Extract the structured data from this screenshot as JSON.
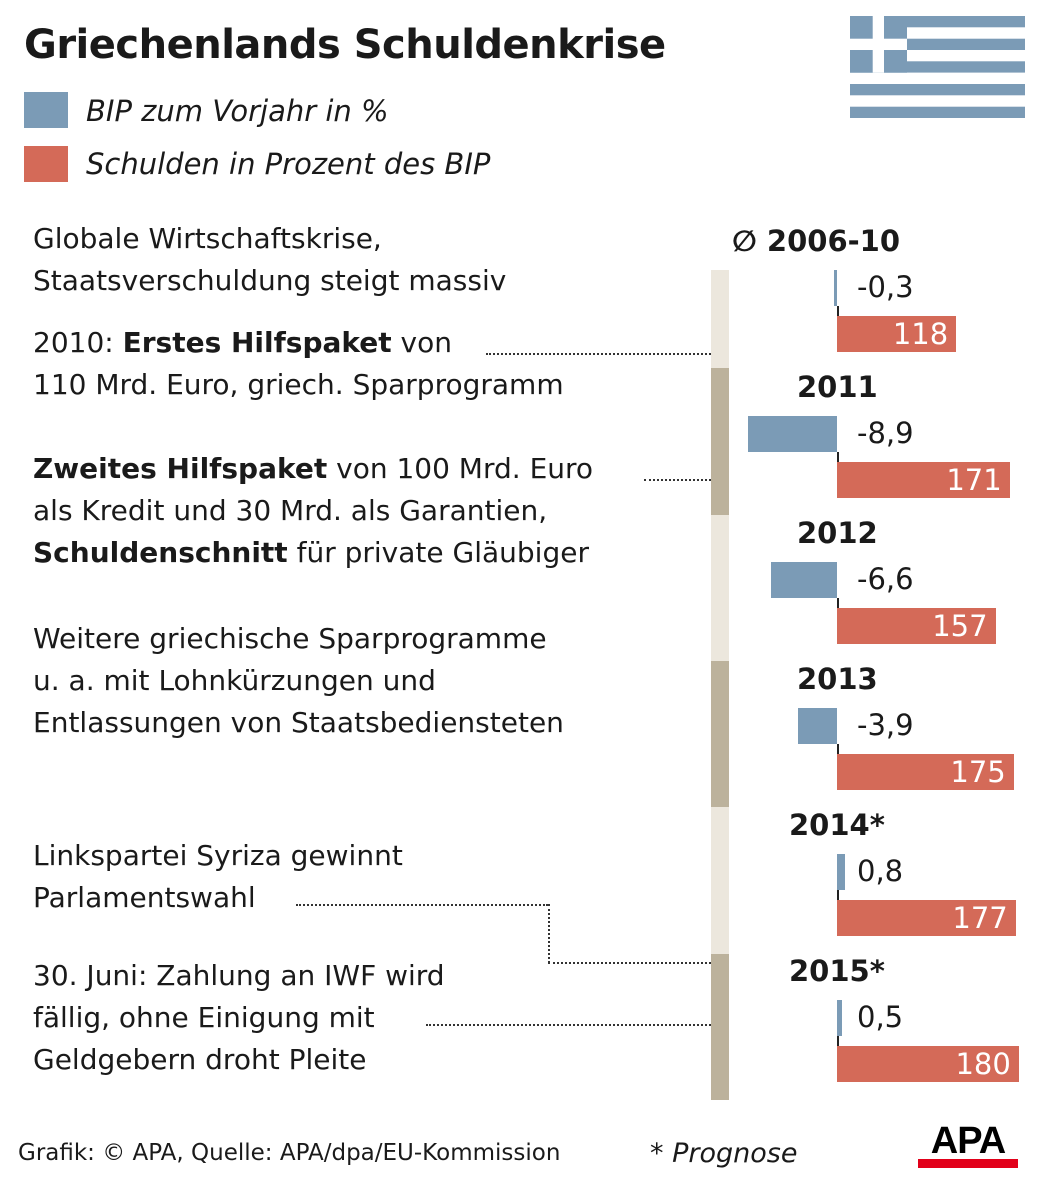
{
  "title": "Griechenlands Schuldenkrise",
  "colors": {
    "gdp": "#7b9bb6",
    "debt": "#d46a58",
    "seg_light": "#ece7dd",
    "seg_dark": "#bcb29c"
  },
  "legend": [
    {
      "label": "BIP zum Vorjahr in %",
      "color": "#7b9bb6"
    },
    {
      "label": "Schulden in Prozent des BIP",
      "color": "#d46a58"
    }
  ],
  "events": [
    {
      "parts": [
        {
          "t": "Globale Wirtschaftskrise,",
          "b": false
        }
      ],
      "line2": "Staatsverschuldung steigt massiv"
    },
    {
      "parts": [
        {
          "t": "2010: ",
          "b": false
        },
        {
          "t": "Erstes Hilfspaket",
          "b": true
        },
        {
          "t": " von",
          "b": false
        }
      ],
      "line2": "110 Mrd. Euro, griech. Sparprogramm"
    },
    {
      "parts": [
        {
          "t": "Zweites Hilfspaket",
          "b": true
        },
        {
          "t": " von 100 Mrd. Euro",
          "b": false
        }
      ],
      "line2": "als Kredit und 30 Mrd. als Garantien,",
      "line3parts": [
        {
          "t": "Schuldenschnitt",
          "b": true
        },
        {
          "t": " für private Gläubiger",
          "b": false
        }
      ]
    },
    {
      "parts": [
        {
          "t": "Weitere griechische Sparprogramme",
          "b": false
        }
      ],
      "line2": "u. a. mit Lohnkürzungen und",
      "line3": "Entlassungen von Staatsbediensteten"
    },
    {
      "parts": [
        {
          "t": "Linkspartei Syriza gewinnt",
          "b": false
        }
      ],
      "line2": "Parlamentswahl"
    },
    {
      "parts": [
        {
          "t": "30. Juni: Zahlung an IWF wird",
          "b": false
        }
      ],
      "line2": "fällig, ohne Einigung mit",
      "line3": "Geldgebern droht Pleite"
    }
  ],
  "chart_data": {
    "type": "bar",
    "title": "Griechenlands Schuldenkrise",
    "categories": [
      "∅ 2006-10",
      "2011",
      "2012",
      "2013",
      "2014*",
      "2015*"
    ],
    "series": [
      {
        "name": "BIP zum Vorjahr in %",
        "values": [
          -0.3,
          -8.9,
          -6.6,
          -3.9,
          0.8,
          0.5
        ],
        "labels": [
          "-0,3",
          "-8,9",
          "-6,6",
          "-3,9",
          "0,8",
          "0,5"
        ]
      },
      {
        "name": "Schulden in Prozent des BIP",
        "values": [
          118,
          171,
          157,
          175,
          177,
          180
        ],
        "labels": [
          "118",
          "171",
          "157",
          "175",
          "177",
          "180"
        ]
      }
    ],
    "orientation": "horizontal"
  },
  "footer": {
    "source": "Grafik: © APA, Quelle: APA/dpa/EU-Kommission",
    "note": "* Prognose",
    "logo": "APA"
  }
}
